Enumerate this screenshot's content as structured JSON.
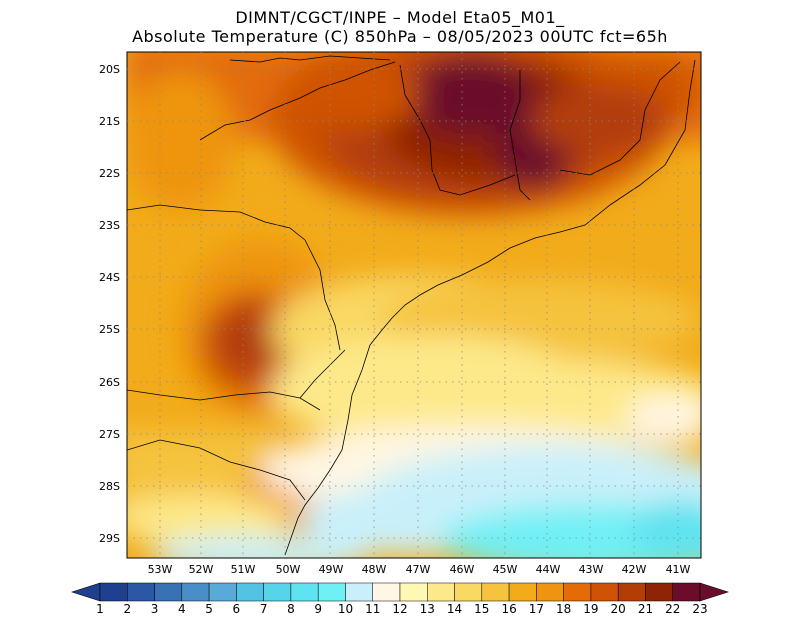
{
  "header": {
    "line1": "DIMNT/CGCT/INPE –   Model Eta05_M01_",
    "line2": "Absolute Temperature (C) 850hPa –   08/05/2023 00UTC fct=65h"
  },
  "lat_labels": [
    "20S",
    "21S",
    "22S",
    "23S",
    "24S",
    "25S",
    "26S",
    "27S",
    "28S",
    "29S"
  ],
  "lon_labels": [
    "53W",
    "52W",
    "51W",
    "50W",
    "49W",
    "48W",
    "47W",
    "46W",
    "45W",
    "44W",
    "43W",
    "42W",
    "41W"
  ],
  "colorbar": {
    "labels": [
      "1",
      "2",
      "3",
      "4",
      "5",
      "6",
      "7",
      "8",
      "9",
      "10",
      "11",
      "12",
      "13",
      "14",
      "15",
      "16",
      "17",
      "18",
      "19",
      "20",
      "21",
      "22",
      "23"
    ],
    "colors": [
      "#1f3f8f",
      "#2a58a5",
      "#3772b4",
      "#4a8ec7",
      "#5aaad8",
      "#52c3e3",
      "#55d4ea",
      "#5ee3f0",
      "#6ff0f5",
      "#c9f0fa",
      "#fff6e3",
      "#fff8b5",
      "#fde98a",
      "#f9d864",
      "#f5c33e",
      "#f2ab1a",
      "#ee9410",
      "#e36c08",
      "#cf5206",
      "#b23d07",
      "#8f2306",
      "#6b0c2a"
    ]
  }
}
